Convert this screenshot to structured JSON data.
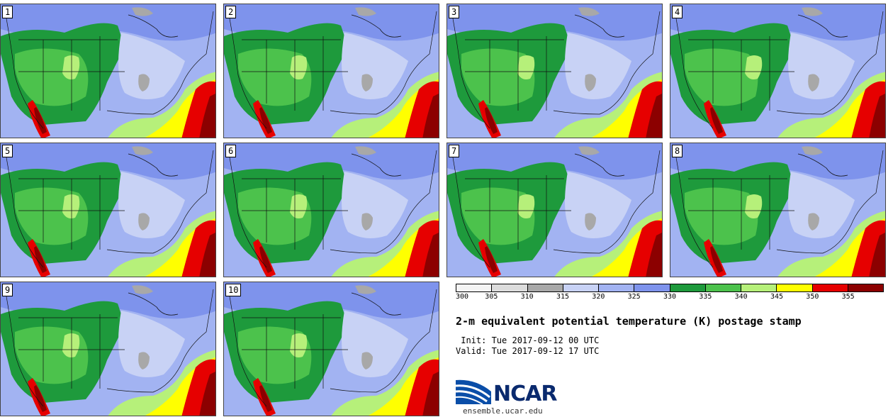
{
  "panels": [
    {
      "label": "1"
    },
    {
      "label": "2"
    },
    {
      "label": "3"
    },
    {
      "label": "4"
    },
    {
      "label": "5"
    },
    {
      "label": "6"
    },
    {
      "label": "7"
    },
    {
      "label": "8"
    },
    {
      "label": "9"
    },
    {
      "label": "10"
    }
  ],
  "colorbar": {
    "ticks": [
      "300",
      "305",
      "310",
      "315",
      "320",
      "325",
      "330",
      "335",
      "340",
      "345",
      "350",
      "355"
    ],
    "colors": [
      "#f4f4f4",
      "#dcdcdc",
      "#a8a8a8",
      "#c8d2f5",
      "#a2b3f2",
      "#7e93ec",
      "#1e9a3c",
      "#4cc24c",
      "#b6f07a",
      "#ffff00",
      "#e60000",
      "#8c0000"
    ]
  },
  "title": "2-m equivalent potential temperature (K) postage stamp",
  "init": " Init: Tue 2017-09-12 00 UTC",
  "valid": "Valid: Tue 2017-09-12 17 UTC",
  "logo": {
    "text": "NCAR",
    "site": "ensemble.ucar.edu"
  }
}
